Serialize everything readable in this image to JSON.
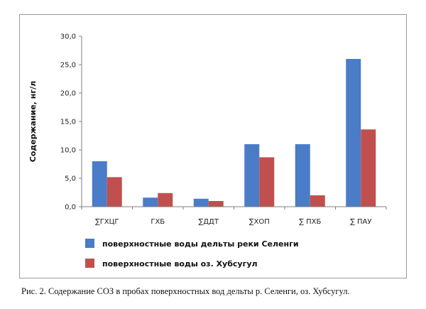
{
  "chart_data": {
    "type": "bar",
    "title": "",
    "ylabel": "Содержание, нг/л",
    "ylim": [
      0,
      30
    ],
    "yticks": [
      "0,0",
      "5,0",
      "10,0",
      "15,0",
      "20,0",
      "25,0",
      "30,0"
    ],
    "yticks_values": [
      0,
      5,
      10,
      15,
      20,
      25,
      30
    ],
    "categories": [
      "∑ГХЦГ",
      "ГХБ",
      "∑ДДТ",
      "∑ХОП",
      "∑ ПХБ",
      "∑ ПАУ"
    ],
    "series": [
      {
        "name": "поверхностные воды дельты реки Селенги",
        "values": [
          8.0,
          1.6,
          1.4,
          11.0,
          11.0,
          26.0
        ],
        "color": "#4a7cc7"
      },
      {
        "name": "поверхностные воды оз. Хубсугул",
        "values": [
          5.2,
          2.4,
          1.0,
          8.7,
          2.0,
          13.6
        ],
        "color": "#c0504d"
      }
    ],
    "grid": false,
    "legend_position": "bottom"
  },
  "caption": "Рис. 2. Содержание СОЗ в пробах поверхностных вод дельты р. Селенги, оз. Хубсугул."
}
